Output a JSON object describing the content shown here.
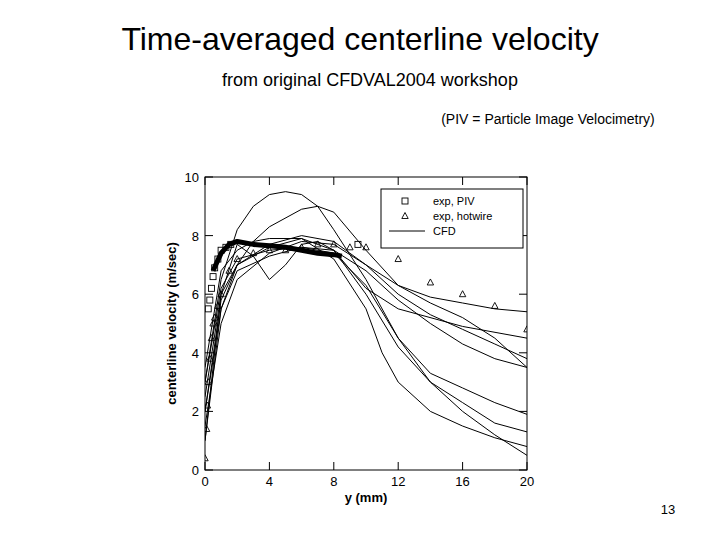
{
  "title": "Time-averaged centerline velocity",
  "subtitle": "from original CFDVAL2004 workshop",
  "note": "(PIV = Particle Image Velocimetry)",
  "page_number": "13",
  "chart_data": {
    "type": "line",
    "x_label": "y (mm)",
    "y_label": "centerline velocity (m/sec)",
    "xlim": [
      0,
      20
    ],
    "xticks": [
      0,
      4,
      8,
      12,
      16,
      20
    ],
    "ylim": [
      0,
      10
    ],
    "yticks": [
      0,
      2,
      4,
      6,
      8,
      10
    ],
    "legend": "top-right",
    "grid": false,
    "series": [
      {
        "name": "exp, PIV",
        "type": "scatter",
        "marker": "square",
        "color": "#000000",
        "x": [
          0.2,
          0.3,
          0.4,
          0.5,
          0.6,
          0.8,
          1.0,
          1.3,
          1.6,
          9.5
        ],
        "values": [
          5.5,
          5.8,
          6.2,
          6.6,
          6.9,
          7.2,
          7.5,
          7.6,
          7.7,
          7.7
        ]
      },
      {
        "name": "exp, hotwire",
        "type": "scatter",
        "marker": "triangle",
        "color": "#000000",
        "x": [
          0,
          0.1,
          0.15,
          0.2,
          0.3,
          0.4,
          0.5,
          0.6,
          0.8,
          1,
          1.5,
          2,
          3,
          4,
          5,
          6,
          7,
          8,
          9,
          10,
          12,
          14,
          16,
          18,
          20
        ],
        "values": [
          0.4,
          1.4,
          2.2,
          3,
          3.8,
          4.5,
          5,
          5.2,
          5.6,
          6,
          6.8,
          7.2,
          7.4,
          7.5,
          7.5,
          7.6,
          7.7,
          7.7,
          7.6,
          7.6,
          7.2,
          6.4,
          6.0,
          5.6,
          4.8
        ]
      },
      {
        "name": "CFD",
        "type": "line",
        "line_style": "solid",
        "color": "#000000",
        "x": [
          0,
          1,
          2,
          3,
          4,
          5,
          6,
          7,
          8,
          10,
          12,
          14,
          16,
          18,
          20
        ],
        "values": [
          3,
          6.5,
          8.2,
          9,
          9.4,
          9.5,
          9.4,
          9,
          8.2,
          6.5,
          4.5,
          3,
          2,
          1.2,
          0.5
        ]
      },
      {
        "name": "CFD",
        "type": "line",
        "line_style": "solid",
        "color": "#000000",
        "x": [
          0,
          1,
          2,
          3,
          4,
          6,
          7,
          8,
          10,
          12,
          14,
          16,
          18,
          20
        ],
        "values": [
          2,
          5.5,
          7,
          7.8,
          8.3,
          8.9,
          9,
          8.8,
          7.5,
          6.3,
          5.9,
          5.7,
          5.5,
          5.4
        ]
      },
      {
        "name": "CFD",
        "type": "line",
        "line_style": "solid",
        "color": "#000000",
        "x": [
          0,
          1,
          2,
          3,
          4,
          5,
          6,
          7,
          8,
          10,
          12,
          16,
          20
        ],
        "values": [
          1,
          6,
          7.7,
          7.3,
          6.5,
          7,
          7.7,
          7.8,
          7.5,
          6.2,
          5.5,
          4.9,
          4.5
        ]
      },
      {
        "name": "CFD",
        "type": "line",
        "line_style": "solid",
        "color": "#000000",
        "x": [
          0,
          1,
          2,
          4,
          6,
          8,
          10,
          12,
          14,
          16,
          18,
          20
        ],
        "values": [
          2.5,
          6,
          7,
          7.7,
          8,
          7.8,
          7,
          6,
          5.3,
          4.8,
          4.3,
          3.8
        ]
      },
      {
        "name": "CFD",
        "type": "line",
        "line_style": "solid",
        "color": "#000000",
        "x": [
          0,
          1,
          2,
          4,
          6,
          8,
          10,
          12,
          14,
          16,
          18,
          20
        ],
        "values": [
          1.5,
          5,
          6.5,
          7.4,
          7.8,
          7.7,
          7,
          6.3,
          5.7,
          5.2,
          4.5,
          3.5
        ]
      },
      {
        "name": "CFD",
        "type": "line",
        "line_style": "solid",
        "color": "#000000",
        "x": [
          0,
          1,
          2,
          4,
          6,
          8,
          10,
          12,
          14,
          16,
          18,
          20
        ],
        "values": [
          3,
          6.2,
          7.2,
          7.5,
          7.6,
          7.5,
          6.8,
          5.8,
          5,
          4.3,
          3.8,
          3.5
        ]
      },
      {
        "name": "CFD",
        "type": "line",
        "line_style": "solid",
        "color": "#000000",
        "x": [
          0,
          1,
          2,
          4,
          6,
          8,
          10,
          11,
          12,
          14,
          16,
          18,
          20
        ],
        "values": [
          2,
          5.8,
          7,
          7.6,
          7.9,
          7.2,
          5.5,
          4,
          3,
          2,
          1.5,
          1.1,
          0.8
        ]
      },
      {
        "name": "CFD",
        "type": "line",
        "line_style": "solid",
        "color": "#000000",
        "x": [
          0,
          1,
          2,
          4,
          6,
          8,
          10,
          12,
          14,
          16,
          18,
          20
        ],
        "values": [
          1,
          5.5,
          6.8,
          7.3,
          7.6,
          7.4,
          6.3,
          4.5,
          3.3,
          2.8,
          2.3,
          1.9
        ]
      },
      {
        "name": "CFD",
        "type": "line",
        "line_style": "solid",
        "color": "#000000",
        "x": [
          0,
          1,
          2,
          3,
          4,
          6,
          8,
          10,
          12,
          14,
          16,
          18,
          20
        ],
        "values": [
          3.5,
          6.8,
          7.5,
          7.8,
          7.9,
          7.9,
          7.5,
          6,
          4.2,
          3,
          2.3,
          1.6,
          1.3
        ]
      },
      {
        "type": "line",
        "line_style": "thick",
        "color": "#000000",
        "x": [
          0.5,
          1,
          1.5,
          2,
          3,
          4,
          5,
          6,
          7,
          8,
          8.5
        ],
        "values": [
          6.8,
          7.4,
          7.7,
          7.8,
          7.7,
          7.65,
          7.6,
          7.5,
          7.4,
          7.35,
          7.3
        ]
      }
    ]
  }
}
